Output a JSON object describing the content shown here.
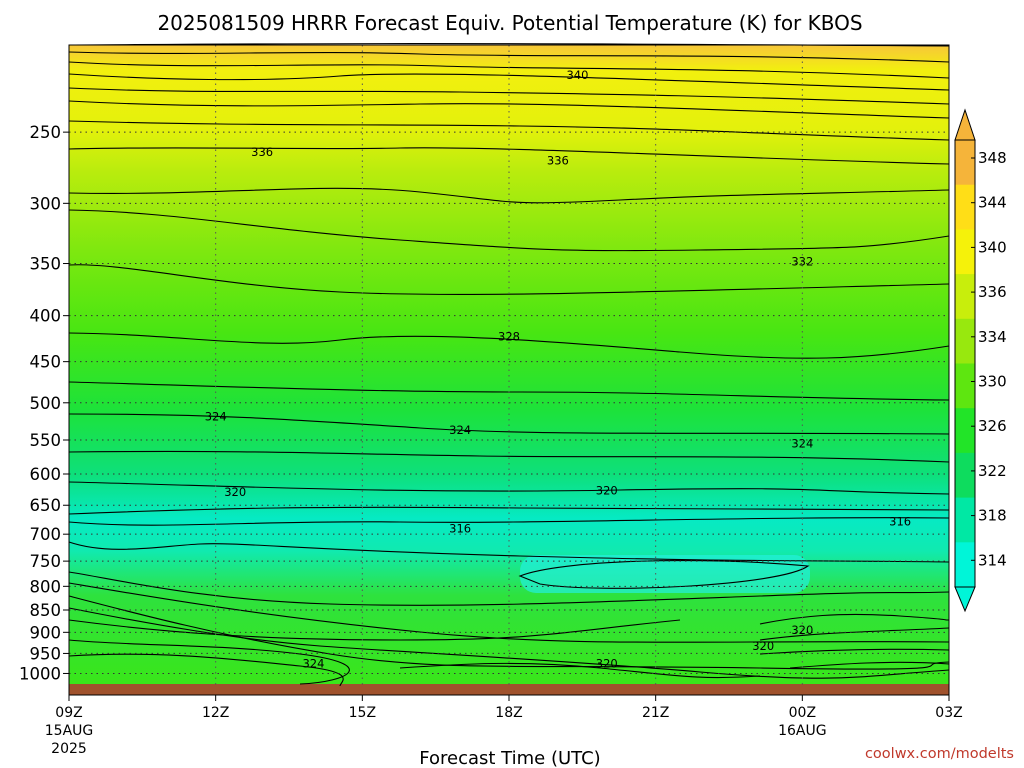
{
  "chart_data": {
    "type": "contour",
    "title": "2025081509 HRRR Forecast Equiv. Potential Temperature (K) for KBOS",
    "xlabel": "Forecast Time (UTC)",
    "credit": "coolwx.com/modelts",
    "x_ticks": [
      {
        "label": "09Z",
        "sub1": "15AUG",
        "sub2": "2025",
        "hour": 9
      },
      {
        "label": "12Z",
        "sub1": "",
        "sub2": "",
        "hour": 12
      },
      {
        "label": "15Z",
        "sub1": "",
        "sub2": "",
        "hour": 15
      },
      {
        "label": "18Z",
        "sub1": "",
        "sub2": "",
        "hour": 18
      },
      {
        "label": "21Z",
        "sub1": "",
        "sub2": "",
        "hour": 21
      },
      {
        "label": "00Z",
        "sub1": "16AUG",
        "sub2": "",
        "hour": 24
      },
      {
        "label": "03Z",
        "sub1": "",
        "sub2": "",
        "hour": 27
      }
    ],
    "xlim": [
      9,
      27
    ],
    "y_ticks": [
      "250",
      "300",
      "350",
      "400",
      "450",
      "500",
      "550",
      "600",
      "650",
      "700",
      "750",
      "800",
      "850",
      "900",
      "950",
      "1000"
    ],
    "y_tick_values": [
      250,
      300,
      350,
      400,
      450,
      500,
      550,
      600,
      650,
      700,
      750,
      800,
      850,
      900,
      950,
      1000
    ],
    "ylim": [
      200,
      1030
    ],
    "y_scale": "log",
    "colorbar": {
      "labels": [
        "348",
        "344",
        "340",
        "336",
        "334",
        "330",
        "326",
        "322",
        "318",
        "314"
      ],
      "values": [
        348,
        344,
        340,
        336,
        334,
        330,
        326,
        322,
        318,
        314
      ],
      "colors": [
        "#f5b43a",
        "#ffde17",
        "#f5f20a",
        "#c8ee0c",
        "#98e80e",
        "#5ee610",
        "#22e428",
        "#0edc5e",
        "#00e8a4",
        "#00f5d8"
      ]
    },
    "contour_labels": [
      {
        "text": "340",
        "hour": 19.4,
        "p": 216
      },
      {
        "text": "336",
        "hour": 12.95,
        "p": 263
      },
      {
        "text": "336",
        "hour": 19.0,
        "p": 269
      },
      {
        "text": "332",
        "hour": 24.0,
        "p": 348
      },
      {
        "text": "328",
        "hour": 18.0,
        "p": 422
      },
      {
        "text": "324",
        "hour": 12.0,
        "p": 518
      },
      {
        "text": "324",
        "hour": 17.0,
        "p": 536
      },
      {
        "text": "324",
        "hour": 24.0,
        "p": 555
      },
      {
        "text": "320",
        "hour": 12.4,
        "p": 628
      },
      {
        "text": "320",
        "hour": 20.0,
        "p": 626
      },
      {
        "text": "316",
        "hour": 17.0,
        "p": 690
      },
      {
        "text": "316",
        "hour": 26.0,
        "p": 678
      },
      {
        "text": "320",
        "hour": 24.0,
        "p": 895
      },
      {
        "text": "320",
        "hour": 23.2,
        "p": 932
      },
      {
        "text": "320",
        "hour": 20.0,
        "p": 975
      },
      {
        "text": "324",
        "hour": 14.0,
        "p": 975
      }
    ]
  }
}
